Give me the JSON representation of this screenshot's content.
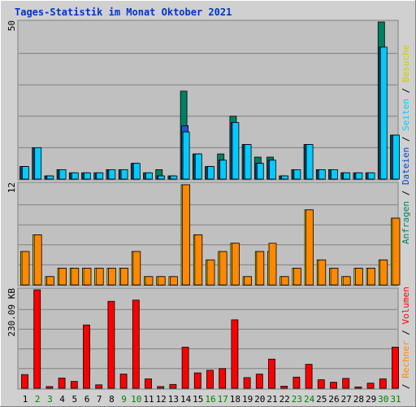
{
  "title": "Tages-Statistik im Monat Oktober 2021",
  "colors": {
    "background": "#d0d0d0",
    "panel": "#c0c0c0",
    "title": "#0033cc",
    "anfragen": "#008060",
    "dateien": "#00ccff",
    "seiten": "#ff8800",
    "besuche": "#ffff00",
    "rechner": "#ff8800",
    "volumen": "#ff0000",
    "weekend_label": "#008000",
    "weekday_label": "#000000"
  },
  "legend": {
    "upper": [
      {
        "text": "Anfragen",
        "color": "#008060"
      },
      {
        "text": " / ",
        "color": "#000000"
      },
      {
        "text": "Dateien",
        "color": "#0044cc"
      },
      {
        "text": " / ",
        "color": "#000000"
      },
      {
        "text": "Seiten",
        "color": "#00ccff"
      },
      {
        "text": " / ",
        "color": "#000000"
      },
      {
        "text": "Besuche",
        "color": "#cccc00"
      }
    ],
    "lower": [
      {
        "text": " / ",
        "color": "#000000"
      },
      {
        "text": "Rechner",
        "color": "#ff8800"
      },
      {
        "text": " / ",
        "color": "#000000"
      },
      {
        "text": "Volumen",
        "color": "#ff0000"
      }
    ]
  },
  "chart_data": [
    {
      "type": "bar",
      "ylabel_max": "50",
      "ylim": [
        0,
        50
      ],
      "categories": [
        "1",
        "2",
        "3",
        "4",
        "5",
        "6",
        "7",
        "8",
        "9",
        "10",
        "11",
        "12",
        "13",
        "14",
        "15",
        "16",
        "17",
        "18",
        "19",
        "20",
        "21",
        "22",
        "23",
        "24",
        "25",
        "26",
        "27",
        "28",
        "29",
        "30",
        "31"
      ],
      "weekend": [
        "2",
        "3",
        "9",
        "10",
        "16",
        "17",
        "23",
        "24",
        "30",
        "31"
      ],
      "series": [
        {
          "name": "Anfragen",
          "values": [
            4,
            10,
            1,
            3,
            2,
            2,
            2,
            3,
            3,
            5,
            2,
            3,
            1,
            28,
            8,
            4,
            8,
            20,
            11,
            7,
            7,
            1,
            3,
            11,
            3,
            3,
            2,
            2,
            2,
            50,
            14
          ]
        },
        {
          "name": "Dateien",
          "values": [
            4,
            10,
            1,
            3,
            2,
            2,
            2,
            3,
            3,
            5,
            2,
            1,
            1,
            17,
            8,
            4,
            6,
            18,
            11,
            5,
            6,
            1,
            3,
            11,
            3,
            3,
            2,
            2,
            2,
            42,
            14
          ]
        },
        {
          "name": "Seiten",
          "values": [
            4,
            10,
            1,
            3,
            2,
            2,
            2,
            3,
            3,
            5,
            2,
            1,
            1,
            15,
            8,
            4,
            6,
            18,
            11,
            5,
            6,
            1,
            3,
            11,
            3,
            3,
            2,
            2,
            2,
            42,
            14
          ]
        }
      ]
    },
    {
      "type": "bar",
      "ylabel_max": "12",
      "ylim": [
        0,
        12
      ],
      "series": [
        {
          "name": "Besuche",
          "values": [
            4,
            6,
            1,
            2,
            2,
            2,
            2,
            2,
            2,
            4,
            1,
            1,
            1,
            12,
            6,
            3,
            4,
            5,
            1,
            4,
            4,
            1,
            2,
            9,
            3,
            2,
            1,
            2,
            2,
            3,
            8
          ]
        },
        {
          "name": "Rechner",
          "values": [
            4,
            6,
            1,
            2,
            2,
            2,
            2,
            2,
            2,
            4,
            1,
            1,
            1,
            12,
            6,
            3,
            4,
            5,
            1,
            4,
            5,
            1,
            2,
            9,
            3,
            2,
            1,
            2,
            2,
            3,
            8
          ]
        }
      ]
    },
    {
      "type": "bar",
      "ylabel_max": "230.09 KB",
      "ylim": [
        0,
        230.09
      ],
      "series": [
        {
          "name": "Volumen",
          "values": [
            32,
            230,
            4,
            24,
            16,
            148,
            8,
            203,
            33,
            206,
            22,
            4,
            9,
            96,
            36,
            42,
            46,
            160,
            25,
            33,
            68,
            5,
            26,
            56,
            20,
            14,
            23,
            3,
            12,
            22,
            96
          ]
        }
      ]
    }
  ]
}
